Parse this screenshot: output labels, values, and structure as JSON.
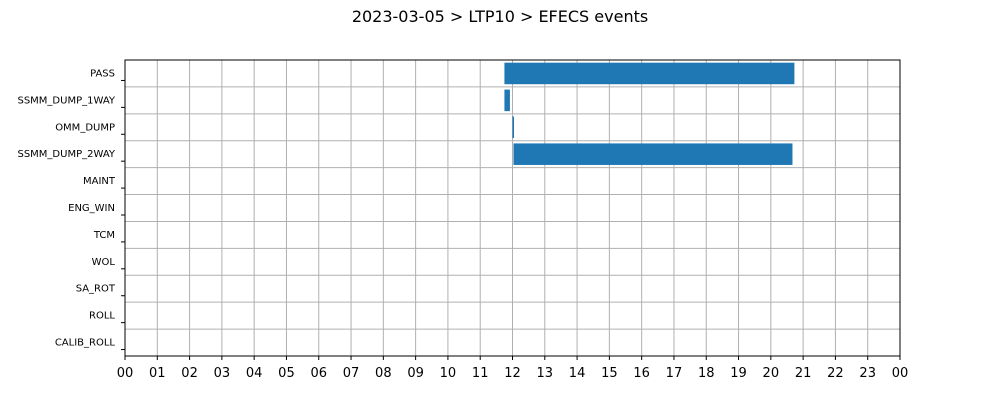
{
  "chart_data": {
    "type": "bar",
    "orientation": "horizontal",
    "title": "2023-03-05 > LTP10 > EFECS events",
    "xlabel": "",
    "ylabel": "",
    "x_unit": "hour of day",
    "xlim": [
      0,
      24
    ],
    "x_tick_labels": [
      "00",
      "01",
      "02",
      "03",
      "04",
      "05",
      "06",
      "07",
      "08",
      "09",
      "10",
      "11",
      "12",
      "13",
      "14",
      "15",
      "16",
      "17",
      "18",
      "19",
      "20",
      "21",
      "22",
      "23",
      "00"
    ],
    "categories": [
      "PASS",
      "SSMM_DUMP_1WAY",
      "OMM_DUMP",
      "SSMM_DUMP_2WAY",
      "MAINT",
      "ENG_WIN",
      "TCM",
      "WOL",
      "SA_ROT",
      "ROLL",
      "CALIB_ROLL"
    ],
    "events": [
      {
        "category": "PASS",
        "start": 11.75,
        "end": 20.73
      },
      {
        "category": "SSMM_DUMP_1WAY",
        "start": 11.75,
        "end": 11.92
      },
      {
        "category": "OMM_DUMP",
        "start": 12.0,
        "end": 12.03
      },
      {
        "category": "SSMM_DUMP_2WAY",
        "start": 12.03,
        "end": 20.67
      }
    ],
    "grid": true,
    "legend": "none",
    "bar_color": "#1f77b4"
  }
}
